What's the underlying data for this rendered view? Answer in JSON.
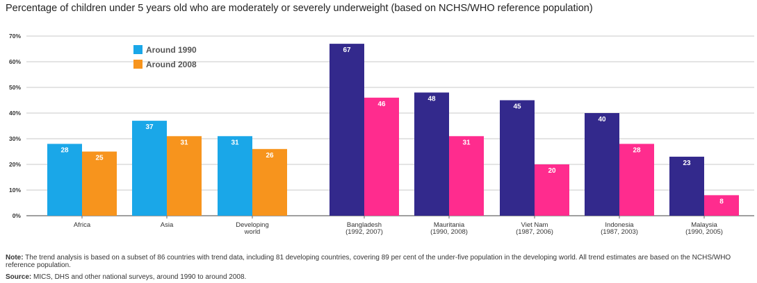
{
  "chart_data": {
    "type": "bar",
    "title": "Percentage of children under 5 years old who are moderately or severely underweight (based on NCHS/WHO reference population)",
    "xlabel": "",
    "ylabel": "",
    "ylim": [
      0,
      70
    ],
    "yticks": [
      "0%",
      "10%",
      "20%",
      "30%",
      "40%",
      "50%",
      "60%",
      "70%"
    ],
    "grid": true,
    "legend_position": "top-left",
    "series": [
      {
        "name": "Around 1990",
        "color": "#1aa7e8"
      },
      {
        "name": "Around 2008",
        "color": "#f7941d"
      }
    ],
    "groups": [
      {
        "label": "Africa",
        "sublabel": "",
        "values": [
          28,
          25
        ],
        "colors": [
          "#1aa7e8",
          "#f7941d"
        ]
      },
      {
        "label": "Asia",
        "sublabel": "",
        "values": [
          37,
          31
        ],
        "colors": [
          "#1aa7e8",
          "#f7941d"
        ]
      },
      {
        "label": "Developing",
        "sublabel": "world",
        "values": [
          31,
          26
        ],
        "colors": [
          "#1aa7e8",
          "#f7941d"
        ]
      },
      {
        "label": "Bangladesh",
        "sublabel": "(1992, 2007)",
        "values": [
          67,
          46
        ],
        "colors": [
          "#33298c",
          "#ff2c8e"
        ]
      },
      {
        "label": "Mauritania",
        "sublabel": "(1990, 2008)",
        "values": [
          48,
          31
        ],
        "colors": [
          "#33298c",
          "#ff2c8e"
        ]
      },
      {
        "label": "Viet Nam",
        "sublabel": "(1987, 2006)",
        "values": [
          45,
          20
        ],
        "colors": [
          "#33298c",
          "#ff2c8e"
        ]
      },
      {
        "label": "Indonesia",
        "sublabel": "(1987, 2003)",
        "values": [
          40,
          28
        ],
        "colors": [
          "#33298c",
          "#ff2c8e"
        ]
      },
      {
        "label": "Malaysia",
        "sublabel": "(1990, 2005)",
        "values": [
          23,
          8
        ],
        "colors": [
          "#33298c",
          "#ff2c8e"
        ]
      }
    ]
  },
  "footer": {
    "note_label": "Note:",
    "note_text": " The trend analysis is based on a subset of 86 countries with trend data, including 81 developing countries, covering 89 per cent of the under-five population in the developing world. All trend estimates are based on the NCHS/WHO reference population.",
    "source_label": "Source:",
    "source_text": " MICS, DHS and other national surveys, around 1990 to around 2008."
  }
}
